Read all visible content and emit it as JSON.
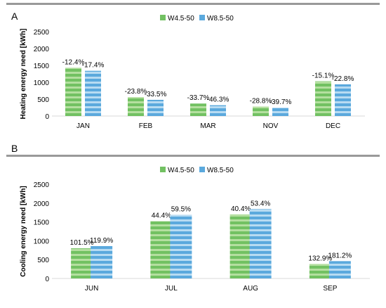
{
  "colors": {
    "series1": "#72c162",
    "series1_stripe": "#b4df9f",
    "series2": "#5ba9dd",
    "series2_stripe": "#b7dbf2",
    "rule": "#999999",
    "axis": "#d9d9d9",
    "text": "#000000"
  },
  "chart_data": [
    {
      "panel": "A",
      "type": "bar",
      "ylabel": "Heating energy need [kWh]",
      "xlabel": "",
      "ylim": [
        0,
        2500
      ],
      "yticks": [
        "0",
        "500",
        "1000",
        "1500",
        "2000",
        "2500"
      ],
      "legend": "top-center",
      "categories": [
        "JAN",
        "FEB",
        "MAR",
        "NOV",
        "DEC"
      ],
      "series": [
        {
          "name": "W4.5-50",
          "values": [
            1430,
            560,
            370,
            280,
            1030
          ],
          "labels": [
            "-12.4%",
            "-23.8%",
            "-33.7%",
            "-28.8%",
            "-15.1%"
          ]
        },
        {
          "name": "W8.5-50",
          "values": [
            1340,
            480,
            320,
            250,
            940
          ],
          "labels": [
            "-17.4%",
            "-33.5%",
            "-46.3%",
            "-39.7%",
            "-22.8%"
          ]
        }
      ]
    },
    {
      "panel": "B",
      "type": "bar",
      "ylabel": "Cooling energy need [kWh]",
      "xlabel": "",
      "ylim": [
        0,
        2500
      ],
      "yticks": [
        "0",
        "500",
        "1000",
        "1500",
        "2000",
        "2500"
      ],
      "legend": "top-center",
      "categories": [
        "JUN",
        "JUL",
        "AUG",
        "SEP"
      ],
      "series": [
        {
          "name": "W4.5-50",
          "values": [
            800,
            1520,
            1700,
            385
          ],
          "labels": [
            "101.5%",
            "44.4%",
            "40.4%",
            "132.9%"
          ]
        },
        {
          "name": "W8.5-50",
          "values": [
            860,
            1690,
            1840,
            460
          ],
          "labels": [
            "119.9%",
            "59.5%",
            "53.4%",
            "181.2%"
          ]
        }
      ]
    }
  ]
}
